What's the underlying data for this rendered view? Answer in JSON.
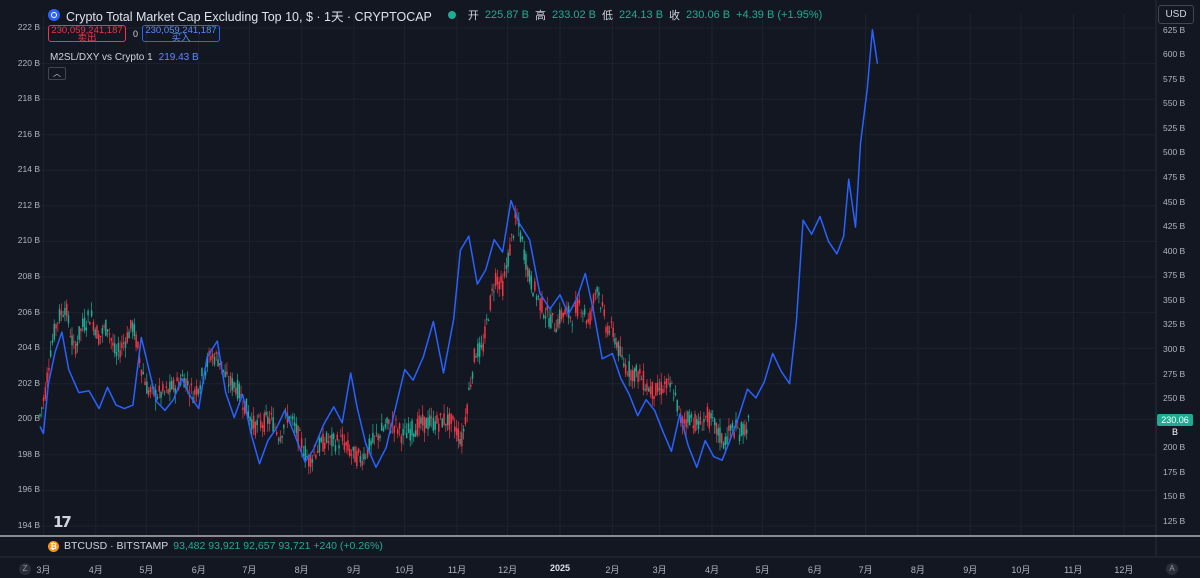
{
  "header": {
    "title": "Crypto Total Market Cap Excluding Top 10, $ · 1天 · CRYPTOCAP",
    "open_label": "开",
    "open": "225.87 B",
    "high_label": "高",
    "high": "233.02 B",
    "low_label": "低",
    "low": "224.13 B",
    "close_label": "收",
    "close": "230.06 B",
    "change": "+4.39 B (+1.95%)"
  },
  "trade": {
    "sell_price": "230,059,241,187",
    "sell_label": "卖出",
    "spread": "0",
    "buy_price": "230,059,241,187",
    "buy_label": "买入"
  },
  "indicator": {
    "name": "M2SL/DXY vs Crypto 1",
    "value": "219.43 B"
  },
  "currency": "USD",
  "last_price_tag": "230.06 B",
  "btc_row": {
    "symbol": "BTCUSD · BITSTAMP",
    "values": "93,482  93,921  92,657  93,721  +240 (+0.26%)"
  },
  "logo_text": "17",
  "zoom_left": "Z",
  "zoom_right": "A",
  "colors": {
    "background": "#131722",
    "up": "#22ab94",
    "down": "#f23645",
    "m2_line": "#2962ff"
  },
  "chart_data": {
    "type": "line",
    "left_axis": {
      "ticks": [
        "222 B",
        "220 B",
        "218 B",
        "216 B",
        "214 B",
        "212 B",
        "210 B",
        "208 B",
        "206 B",
        "204 B",
        "202 B",
        "200 B",
        "198 B",
        "196 B",
        "194 B"
      ],
      "ylim": [
        194,
        222
      ]
    },
    "right_axis": {
      "ticks": [
        "625 B",
        "600 B",
        "575 B",
        "550 B",
        "525 B",
        "500 B",
        "475 B",
        "450 B",
        "425 B",
        "400 B",
        "375 B",
        "350 B",
        "325 B",
        "300 B",
        "275 B",
        "250 B",
        "225 B",
        "200 B",
        "175 B",
        "150 B",
        "125 B"
      ],
      "ylim": [
        120,
        628
      ]
    },
    "x_ticks": [
      "3月",
      "4月",
      "5月",
      "6月",
      "7月",
      "8月",
      "9月",
      "10月",
      "11月",
      "12月",
      "2025",
      "2月",
      "3月",
      "4月",
      "5月",
      "6月",
      "7月",
      "8月",
      "9月",
      "10月",
      "11月",
      "12月"
    ],
    "x_range": [
      "2024-02-28",
      "2025-12-20"
    ],
    "series": [
      {
        "name": "M2SL/DXY vs Crypto 1",
        "kind": "line",
        "axis": "left",
        "points": [
          [
            "2024-02-28",
            199.6
          ],
          [
            "2024-03-01",
            199.2
          ],
          [
            "2024-03-04",
            202.0
          ],
          [
            "2024-03-08",
            203.8
          ],
          [
            "2024-03-12",
            204.9
          ],
          [
            "2024-03-16",
            202.8
          ],
          [
            "2024-03-22",
            201.5
          ],
          [
            "2024-03-28",
            201.6
          ],
          [
            "2024-04-03",
            200.6
          ],
          [
            "2024-04-08",
            201.8
          ],
          [
            "2024-04-13",
            200.8
          ],
          [
            "2024-04-18",
            200.6
          ],
          [
            "2024-04-23",
            200.8
          ],
          [
            "2024-04-28",
            204.6
          ],
          [
            "2024-05-02",
            203.0
          ],
          [
            "2024-05-07",
            201.0
          ],
          [
            "2024-05-12",
            200.5
          ],
          [
            "2024-05-17",
            201.1
          ],
          [
            "2024-05-22",
            202.3
          ],
          [
            "2024-05-27",
            201.3
          ],
          [
            "2024-06-01",
            200.6
          ],
          [
            "2024-06-06",
            203.5
          ],
          [
            "2024-06-12",
            204.4
          ],
          [
            "2024-06-17",
            201.5
          ],
          [
            "2024-06-22",
            200.1
          ],
          [
            "2024-06-27",
            201.4
          ],
          [
            "2024-07-02",
            199.2
          ],
          [
            "2024-07-07",
            197.5
          ],
          [
            "2024-07-12",
            198.8
          ],
          [
            "2024-07-17",
            199.5
          ],
          [
            "2024-07-22",
            200.5
          ],
          [
            "2024-07-28",
            199.1
          ],
          [
            "2024-08-03",
            197.6
          ],
          [
            "2024-08-08",
            198.3
          ],
          [
            "2024-08-14",
            199.7
          ],
          [
            "2024-08-20",
            200.7
          ],
          [
            "2024-08-25",
            199.8
          ],
          [
            "2024-08-30",
            202.6
          ],
          [
            "2024-09-03",
            200.6
          ],
          [
            "2024-09-08",
            198.6
          ],
          [
            "2024-09-14",
            197.3
          ],
          [
            "2024-09-20",
            198.4
          ],
          [
            "2024-09-26",
            200.8
          ],
          [
            "2024-10-01",
            202.8
          ],
          [
            "2024-10-06",
            202.2
          ],
          [
            "2024-10-12",
            203.5
          ],
          [
            "2024-10-18",
            205.5
          ],
          [
            "2024-10-24",
            202.6
          ],
          [
            "2024-10-30",
            205.6
          ],
          [
            "2024-11-03",
            209.5
          ],
          [
            "2024-11-08",
            210.3
          ],
          [
            "2024-11-13",
            207.6
          ],
          [
            "2024-11-18",
            208.4
          ],
          [
            "2024-11-23",
            210.1
          ],
          [
            "2024-11-28",
            209.4
          ],
          [
            "2024-12-03",
            212.3
          ],
          [
            "2024-12-08",
            211.0
          ],
          [
            "2024-12-14",
            210.1
          ],
          [
            "2024-12-20",
            207.1
          ],
          [
            "2024-12-26",
            206.2
          ],
          [
            "2025-01-01",
            207.0
          ],
          [
            "2025-01-06",
            205.9
          ],
          [
            "2025-01-11",
            206.8
          ],
          [
            "2025-01-16",
            208.2
          ],
          [
            "2025-01-21",
            206.0
          ],
          [
            "2025-01-26",
            203.4
          ],
          [
            "2025-02-01",
            203.7
          ],
          [
            "2025-02-06",
            202.3
          ],
          [
            "2025-02-11",
            201.4
          ],
          [
            "2025-02-16",
            200.2
          ],
          [
            "2025-02-21",
            201.1
          ],
          [
            "2025-02-26",
            200.5
          ],
          [
            "2025-03-03",
            199.3
          ],
          [
            "2025-03-08",
            198.2
          ],
          [
            "2025-03-13",
            200.3
          ],
          [
            "2025-03-18",
            198.5
          ],
          [
            "2025-03-23",
            197.3
          ],
          [
            "2025-03-28",
            198.8
          ],
          [
            "2025-04-02",
            197.9
          ],
          [
            "2025-04-07",
            197.7
          ],
          [
            "2025-04-12",
            198.9
          ],
          [
            "2025-04-17",
            200.2
          ],
          [
            "2025-04-22",
            201.7
          ],
          [
            "2025-04-27",
            201.2
          ],
          [
            "2025-05-02",
            202.1
          ],
          [
            "2025-05-07",
            203.7
          ],
          [
            "2025-05-12",
            202.7
          ],
          [
            "2025-05-17",
            202.0
          ],
          [
            "2025-05-21",
            205.5
          ],
          [
            "2025-05-25",
            211.2
          ],
          [
            "2025-05-30",
            210.4
          ],
          [
            "2025-06-04",
            211.4
          ],
          [
            "2025-06-09",
            210.0
          ],
          [
            "2025-06-14",
            209.3
          ],
          [
            "2025-06-18",
            210.3
          ],
          [
            "2025-06-21",
            213.5
          ],
          [
            "2025-06-25",
            210.8
          ],
          [
            "2025-06-28",
            215.5
          ],
          [
            "2025-07-02",
            218.6
          ],
          [
            "2025-07-05",
            221.9
          ],
          [
            "2025-07-08",
            220.0
          ]
        ]
      },
      {
        "name": "Crypto Total Market Cap Excluding Top 10",
        "kind": "candlestick",
        "axis": "left",
        "points": [
          [
            "2024-02-28",
            200.2
          ],
          [
            "2024-03-02",
            201.5
          ],
          [
            "2024-03-05",
            203.8
          ],
          [
            "2024-03-09",
            205.5
          ],
          [
            "2024-03-14",
            206.4
          ],
          [
            "2024-03-19",
            203.9
          ],
          [
            "2024-03-24",
            205.2
          ],
          [
            "2024-03-29",
            205.9
          ],
          [
            "2024-04-03",
            204.6
          ],
          [
            "2024-04-08",
            205.3
          ],
          [
            "2024-04-13",
            203.5
          ],
          [
            "2024-04-18",
            204.4
          ],
          [
            "2024-04-23",
            205.3
          ],
          [
            "2024-04-28",
            203.0
          ],
          [
            "2024-05-02",
            201.6
          ],
          [
            "2024-05-07",
            201.4
          ],
          [
            "2024-05-13",
            201.5
          ],
          [
            "2024-05-18",
            201.9
          ],
          [
            "2024-05-23",
            202.4
          ],
          [
            "2024-05-29",
            201.4
          ],
          [
            "2024-06-03",
            202.4
          ],
          [
            "2024-06-08",
            203.6
          ],
          [
            "2024-06-13",
            203.4
          ],
          [
            "2024-06-18",
            202.1
          ],
          [
            "2024-06-23",
            201.9
          ],
          [
            "2024-06-28",
            200.9
          ],
          [
            "2024-07-04",
            199.6
          ],
          [
            "2024-07-09",
            199.8
          ],
          [
            "2024-07-14",
            200.0
          ],
          [
            "2024-07-19",
            199.1
          ],
          [
            "2024-07-24",
            200.3
          ],
          [
            "2024-07-29",
            199.3
          ],
          [
            "2024-08-05",
            197.7
          ],
          [
            "2024-08-10",
            198.3
          ],
          [
            "2024-08-15",
            198.8
          ],
          [
            "2024-08-20",
            198.7
          ],
          [
            "2024-08-25",
            198.8
          ],
          [
            "2024-08-31",
            198.0
          ],
          [
            "2024-09-05",
            197.8
          ],
          [
            "2024-09-10",
            198.4
          ],
          [
            "2024-09-15",
            199.1
          ],
          [
            "2024-09-20",
            199.6
          ],
          [
            "2024-09-25",
            199.7
          ],
          [
            "2024-09-30",
            199.1
          ],
          [
            "2024-10-05",
            199.4
          ],
          [
            "2024-10-10",
            199.7
          ],
          [
            "2024-10-15",
            199.8
          ],
          [
            "2024-10-20",
            199.8
          ],
          [
            "2024-10-25",
            200.0
          ],
          [
            "2024-10-30",
            199.7
          ],
          [
            "2024-11-04",
            198.8
          ],
          [
            "2024-11-08",
            201.5
          ],
          [
            "2024-11-12",
            203.9
          ],
          [
            "2024-11-16",
            203.8
          ],
          [
            "2024-11-20",
            206.2
          ],
          [
            "2024-11-24",
            208.1
          ],
          [
            "2024-11-28",
            207.4
          ],
          [
            "2024-12-02",
            209.4
          ],
          [
            "2024-12-06",
            211.4
          ],
          [
            "2024-12-10",
            209.8
          ],
          [
            "2024-12-14",
            207.9
          ],
          [
            "2024-12-19",
            206.8
          ],
          [
            "2024-12-24",
            205.9
          ],
          [
            "2024-12-29",
            205.3
          ],
          [
            "2025-01-03",
            206.0
          ],
          [
            "2025-01-08",
            205.8
          ],
          [
            "2025-01-13",
            206.6
          ],
          [
            "2025-01-18",
            205.4
          ],
          [
            "2025-01-23",
            207.6
          ],
          [
            "2025-01-28",
            205.3
          ],
          [
            "2025-02-02",
            204.8
          ],
          [
            "2025-02-07",
            203.2
          ],
          [
            "2025-02-12",
            202.7
          ],
          [
            "2025-02-17",
            202.5
          ],
          [
            "2025-02-22",
            201.8
          ],
          [
            "2025-02-27",
            201.5
          ],
          [
            "2025-03-04",
            201.9
          ],
          [
            "2025-03-09",
            201.7
          ],
          [
            "2025-03-14",
            199.8
          ],
          [
            "2025-03-19",
            200.2
          ],
          [
            "2025-03-24",
            199.6
          ],
          [
            "2025-03-29",
            200.2
          ],
          [
            "2025-04-03",
            199.5
          ],
          [
            "2025-04-08",
            198.7
          ],
          [
            "2025-04-13",
            199.5
          ],
          [
            "2025-04-18",
            199.3
          ],
          [
            "2025-04-23",
            199.8
          ]
        ]
      }
    ]
  }
}
